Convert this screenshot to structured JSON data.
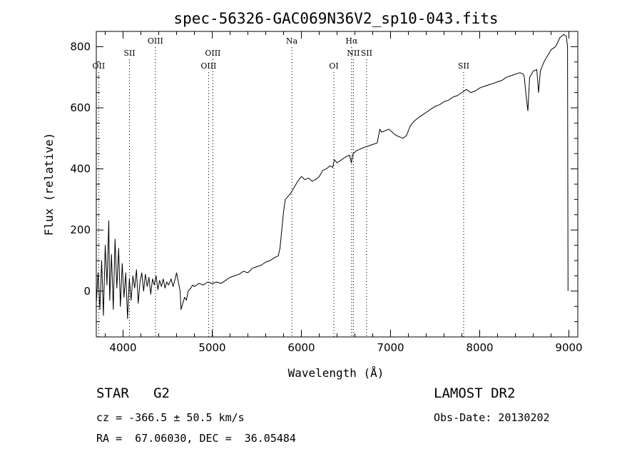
{
  "chart_data": {
    "type": "line",
    "title": "spec-56326-GAC069N36V2_sp10-043.fits",
    "xlabel": "Wavelength (Å)",
    "ylabel": "Flux (relative)",
    "xlim": [
      3700,
      9100
    ],
    "ylim": [
      -150,
      850
    ],
    "xticks": [
      4000,
      5000,
      6000,
      7000,
      8000,
      9000
    ],
    "yticks": [
      0,
      200,
      400,
      600,
      800
    ],
    "grid": false,
    "series": [
      {
        "name": "flux",
        "points": [
          [
            3700,
            -40
          ],
          [
            3720,
            60
          ],
          [
            3740,
            -60
          ],
          [
            3760,
            100
          ],
          [
            3780,
            -80
          ],
          [
            3800,
            150
          ],
          [
            3820,
            20
          ],
          [
            3840,
            230
          ],
          [
            3850,
            -30
          ],
          [
            3870,
            120
          ],
          [
            3890,
            -60
          ],
          [
            3910,
            170
          ],
          [
            3930,
            10
          ],
          [
            3950,
            140
          ],
          [
            3970,
            -50
          ],
          [
            3990,
            90
          ],
          [
            4010,
            -20
          ],
          [
            4030,
            60
          ],
          [
            4050,
            -90
          ],
          [
            4070,
            40
          ],
          [
            4090,
            -30
          ],
          [
            4110,
            50
          ],
          [
            4130,
            10
          ],
          [
            4150,
            70
          ],
          [
            4170,
            -40
          ],
          [
            4190,
            30
          ],
          [
            4210,
            60
          ],
          [
            4230,
            0
          ],
          [
            4250,
            55
          ],
          [
            4270,
            15
          ],
          [
            4290,
            45
          ],
          [
            4310,
            -10
          ],
          [
            4330,
            40
          ],
          [
            4350,
            20
          ],
          [
            4370,
            50
          ],
          [
            4390,
            5
          ],
          [
            4410,
            35
          ],
          [
            4430,
            15
          ],
          [
            4450,
            40
          ],
          [
            4470,
            10
          ],
          [
            4490,
            30
          ],
          [
            4510,
            20
          ],
          [
            4540,
            40
          ],
          [
            4560,
            15
          ],
          [
            4580,
            35
          ],
          [
            4600,
            60
          ],
          [
            4620,
            30
          ],
          [
            4640,
            0
          ],
          [
            4650,
            -60
          ],
          [
            4670,
            -40
          ],
          [
            4690,
            -20
          ],
          [
            4710,
            -30
          ],
          [
            4730,
            0
          ],
          [
            4760,
            10
          ],
          [
            4780,
            20
          ],
          [
            4800,
            15
          ],
          [
            4850,
            25
          ],
          [
            4900,
            20
          ],
          [
            4950,
            30
          ],
          [
            5000,
            25
          ],
          [
            5050,
            30
          ],
          [
            5100,
            25
          ],
          [
            5150,
            35
          ],
          [
            5200,
            45
          ],
          [
            5250,
            50
          ],
          [
            5300,
            55
          ],
          [
            5350,
            65
          ],
          [
            5400,
            60
          ],
          [
            5450,
            75
          ],
          [
            5500,
            80
          ],
          [
            5550,
            85
          ],
          [
            5600,
            95
          ],
          [
            5650,
            100
          ],
          [
            5700,
            110
          ],
          [
            5740,
            115
          ],
          [
            5760,
            140
          ],
          [
            5780,
            200
          ],
          [
            5800,
            260
          ],
          [
            5820,
            300
          ],
          [
            5850,
            310
          ],
          [
            5880,
            320
          ],
          [
            5920,
            340
          ],
          [
            5960,
            360
          ],
          [
            6000,
            375
          ],
          [
            6040,
            365
          ],
          [
            6080,
            370
          ],
          [
            6120,
            360
          ],
          [
            6160,
            365
          ],
          [
            6200,
            375
          ],
          [
            6240,
            395
          ],
          [
            6280,
            400
          ],
          [
            6320,
            410
          ],
          [
            6350,
            405
          ],
          [
            6370,
            430
          ],
          [
            6400,
            420
          ],
          [
            6450,
            430
          ],
          [
            6500,
            440
          ],
          [
            6540,
            445
          ],
          [
            6560,
            420
          ],
          [
            6580,
            450
          ],
          [
            6620,
            460
          ],
          [
            6660,
            465
          ],
          [
            6700,
            470
          ],
          [
            6750,
            475
          ],
          [
            6800,
            480
          ],
          [
            6850,
            485
          ],
          [
            6880,
            530
          ],
          [
            6900,
            520
          ],
          [
            6940,
            525
          ],
          [
            6980,
            530
          ],
          [
            7020,
            520
          ],
          [
            7060,
            510
          ],
          [
            7100,
            505
          ],
          [
            7140,
            500
          ],
          [
            7180,
            510
          ],
          [
            7220,
            540
          ],
          [
            7260,
            555
          ],
          [
            7300,
            565
          ],
          [
            7350,
            575
          ],
          [
            7400,
            585
          ],
          [
            7450,
            595
          ],
          [
            7500,
            605
          ],
          [
            7550,
            610
          ],
          [
            7600,
            620
          ],
          [
            7650,
            625
          ],
          [
            7700,
            635
          ],
          [
            7750,
            640
          ],
          [
            7800,
            650
          ],
          [
            7850,
            660
          ],
          [
            7900,
            650
          ],
          [
            7950,
            655
          ],
          [
            8000,
            665
          ],
          [
            8050,
            670
          ],
          [
            8100,
            675
          ],
          [
            8150,
            680
          ],
          [
            8200,
            685
          ],
          [
            8250,
            690
          ],
          [
            8300,
            700
          ],
          [
            8350,
            705
          ],
          [
            8400,
            710
          ],
          [
            8450,
            715
          ],
          [
            8490,
            710
          ],
          [
            8500,
            700
          ],
          [
            8520,
            640
          ],
          [
            8540,
            590
          ],
          [
            8560,
            700
          ],
          [
            8600,
            720
          ],
          [
            8640,
            725
          ],
          [
            8660,
            650
          ],
          [
            8680,
            720
          ],
          [
            8720,
            750
          ],
          [
            8760,
            770
          ],
          [
            8800,
            790
          ],
          [
            8850,
            800
          ],
          [
            8900,
            830
          ],
          [
            8940,
            840
          ],
          [
            8970,
            835
          ],
          [
            8985,
            800
          ],
          [
            8990,
            0
          ]
        ]
      }
    ],
    "line_markers": [
      {
        "label": "OII",
        "wavelength": 3727,
        "row": 3
      },
      {
        "label": "SII",
        "wavelength": 4072,
        "row": 2
      },
      {
        "label": "OIII",
        "wavelength": 4363,
        "row": 1
      },
      {
        "label": "OIII",
        "wavelength": 4959,
        "row": 3
      },
      {
        "label": "OIII",
        "wavelength": 5007,
        "row": 2
      },
      {
        "label": "Na",
        "wavelength": 5893,
        "row": 1
      },
      {
        "label": "OI",
        "wavelength": 6364,
        "row": 3
      },
      {
        "label": "Hα",
        "wavelength": 6563,
        "row": 1
      },
      {
        "label": "NII",
        "wavelength": 6583,
        "row": 2
      },
      {
        "label": "SII",
        "wavelength": 6731,
        "row": 2
      },
      {
        "label": "SII",
        "wavelength": 7820,
        "row": 3
      }
    ]
  },
  "info": {
    "class_line": "STAR   G2",
    "survey": "LAMOST DR2",
    "cz": "cz = -366.5 ± 50.5 km/s",
    "obs_date": "Obs-Date: 20130202",
    "coords": "RA =  67.06030, DEC =  36.05484"
  }
}
